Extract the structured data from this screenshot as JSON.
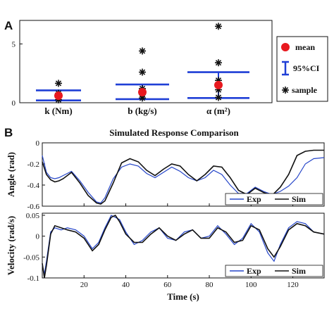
{
  "panel_labels": {
    "a": "A",
    "b": "B"
  },
  "colors": {
    "mean": "#e8191f",
    "ci": "#1f3fd6",
    "sample": "#111111",
    "exp": "#2646c9",
    "sim": "#111111"
  },
  "chart_data": [
    {
      "type": "scatter",
      "panel": "A",
      "categories": [
        "k (Nm)",
        "b (kg/s)",
        "α (m²)"
      ],
      "ylim": [
        0,
        7
      ],
      "yticks": [
        "0",
        "5"
      ],
      "legend": {
        "position": "right",
        "entries": [
          "mean",
          "95%CI",
          "sample"
        ]
      },
      "groups": [
        {
          "category": "k (Nm)",
          "mean": 0.6,
          "ci": [
            0.2,
            1.05
          ],
          "samples": [
            0.25,
            0.45,
            0.6,
            0.8,
            1.65
          ]
        },
        {
          "category": "b (kg/s)",
          "mean": 0.9,
          "ci": [
            0.3,
            1.55
          ],
          "samples": [
            0.4,
            0.7,
            1.0,
            1.2,
            2.6,
            4.4
          ]
        },
        {
          "category": "α (m²)",
          "mean": 1.5,
          "ci": [
            0.4,
            2.6
          ],
          "samples": [
            0.45,
            1.1,
            1.5,
            1.9,
            3.4,
            6.5
          ]
        }
      ]
    },
    {
      "type": "line",
      "panel": "B",
      "title": "Simulated Response Comparison",
      "subplots": [
        {
          "ylabel": "Angle (rad)",
          "xlim": [
            0,
            135
          ],
          "ylim": [
            -0.6,
            0
          ],
          "yticks": [
            "0",
            "-0.2",
            "-0.4",
            "-0.6"
          ],
          "legend": {
            "position": "bottom-right",
            "entries": [
              "Exp",
              "Sim"
            ]
          },
          "series": [
            {
              "name": "Exp",
              "x": [
                0,
                2,
                4,
                6,
                8,
                10,
                14,
                18,
                22,
                26,
                28,
                30,
                34,
                38,
                42,
                46,
                50,
                54,
                58,
                62,
                66,
                70,
                74,
                78,
                82,
                86,
                90,
                94,
                98,
                102,
                106,
                110,
                114,
                118,
                122,
                126,
                130,
                135
              ],
              "y": [
                -0.12,
                -0.28,
                -0.33,
                -0.34,
                -0.33,
                -0.31,
                -0.27,
                -0.36,
                -0.47,
                -0.56,
                -0.57,
                -0.52,
                -0.34,
                -0.23,
                -0.2,
                -0.22,
                -0.29,
                -0.33,
                -0.28,
                -0.23,
                -0.27,
                -0.33,
                -0.36,
                -0.33,
                -0.26,
                -0.3,
                -0.4,
                -0.48,
                -0.48,
                -0.42,
                -0.46,
                -0.49,
                -0.46,
                -0.41,
                -0.33,
                -0.2,
                -0.15,
                -0.14
              ]
            },
            {
              "name": "Sim",
              "x": [
                0,
                2,
                4,
                6,
                8,
                10,
                14,
                18,
                22,
                26,
                28,
                30,
                34,
                38,
                42,
                46,
                50,
                54,
                58,
                62,
                66,
                70,
                74,
                78,
                82,
                86,
                90,
                94,
                98,
                102,
                106,
                110,
                114,
                118,
                122,
                126,
                130,
                135
              ],
              "y": [
                -0.18,
                -0.3,
                -0.35,
                -0.37,
                -0.36,
                -0.34,
                -0.28,
                -0.38,
                -0.5,
                -0.57,
                -0.58,
                -0.55,
                -0.38,
                -0.19,
                -0.15,
                -0.18,
                -0.26,
                -0.31,
                -0.25,
                -0.2,
                -0.22,
                -0.3,
                -0.36,
                -0.3,
                -0.22,
                -0.23,
                -0.33,
                -0.45,
                -0.49,
                -0.43,
                -0.47,
                -0.5,
                -0.42,
                -0.3,
                -0.12,
                -0.08,
                -0.07,
                -0.07
              ]
            }
          ]
        },
        {
          "ylabel": "Velocity (rad/s)",
          "xlabel": "Time (s)",
          "xlim": [
            0,
            135
          ],
          "ylim": [
            -0.1,
            0.055
          ],
          "xticks": [
            "20",
            "40",
            "60",
            "80",
            "100",
            "120"
          ],
          "yticks": [
            "0.05",
            "0",
            "-0.05",
            "-0.1"
          ],
          "legend": {
            "position": "bottom-right",
            "entries": [
              "Exp",
              "Sim"
            ]
          },
          "series": [
            {
              "name": "Exp",
              "x": [
                0,
                1,
                2,
                4,
                6,
                9,
                12,
                16,
                20,
                24,
                27,
                30,
                33,
                35,
                37,
                40,
                44,
                48,
                52,
                56,
                60,
                64,
                68,
                72,
                76,
                80,
                84,
                88,
                92,
                96,
                100,
                104,
                108,
                111,
                114,
                118,
                122,
                126,
                130,
                135
              ],
              "y": [
                -0.07,
                -0.09,
                -0.06,
                0.01,
                0.02,
                0.015,
                0.02,
                0.015,
                0.0,
                -0.03,
                -0.015,
                0.02,
                0.05,
                0.045,
                0.04,
                0.01,
                -0.02,
                -0.01,
                0.01,
                0.02,
                -0.005,
                -0.01,
                0.01,
                0.015,
                -0.005,
                0.0,
                0.025,
                0.005,
                -0.02,
                -0.005,
                0.03,
                0.01,
                -0.04,
                -0.06,
                -0.02,
                0.02,
                0.035,
                0.03,
                0.01,
                0.005
              ]
            },
            {
              "name": "Sim",
              "x": [
                0,
                1,
                2,
                4,
                6,
                9,
                12,
                16,
                20,
                24,
                27,
                30,
                33,
                35,
                37,
                40,
                44,
                48,
                52,
                56,
                60,
                64,
                68,
                72,
                76,
                80,
                84,
                88,
                92,
                96,
                100,
                104,
                108,
                111,
                114,
                118,
                122,
                126,
                130,
                135
              ],
              "y": [
                -0.065,
                -0.1,
                -0.07,
                0.005,
                0.025,
                0.02,
                0.015,
                0.01,
                -0.005,
                -0.035,
                -0.02,
                0.015,
                0.045,
                0.05,
                0.035,
                0.005,
                -0.015,
                -0.015,
                0.005,
                0.02,
                0.0,
                -0.01,
                0.005,
                0.015,
                -0.005,
                -0.005,
                0.02,
                0.01,
                -0.015,
                -0.01,
                0.025,
                0.015,
                -0.03,
                -0.05,
                -0.025,
                0.015,
                0.03,
                0.025,
                0.01,
                0.005
              ]
            }
          ]
        }
      ]
    }
  ]
}
